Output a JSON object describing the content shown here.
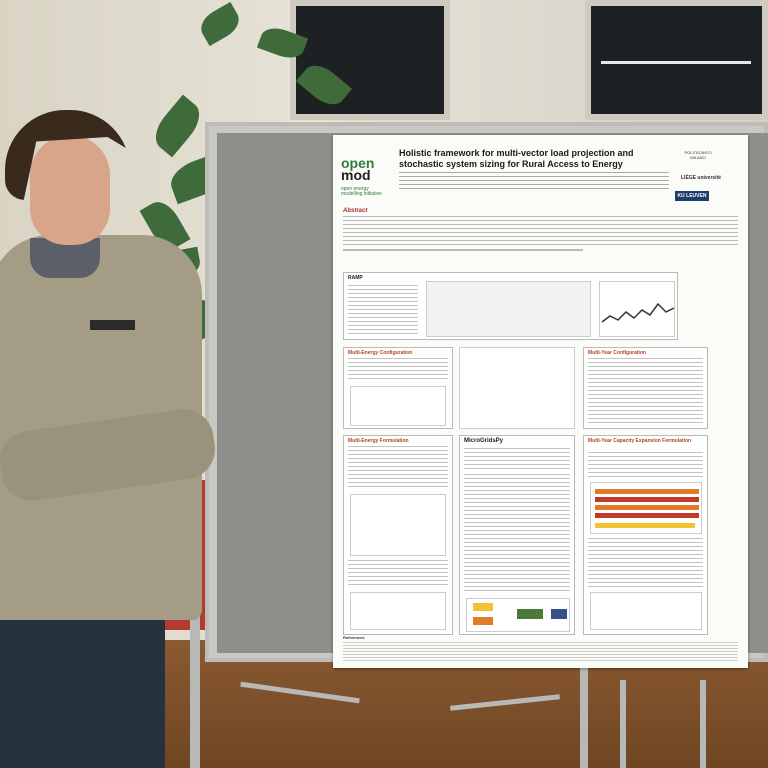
{
  "poster": {
    "logo": {
      "word1": "open",
      "word2": "mod",
      "subtitle": "open energy modelling initiative"
    },
    "title": "Holistic framework for multi-vector load projection and stochastic system sizing for Rural Access to Energy",
    "institutions": {
      "polimi": "POLITECNICO MILANO",
      "liege": "LIÈGE université",
      "kul": "KU LEUVEN"
    },
    "abstract_heading": "Abstract",
    "sections": {
      "ramp": "RAMP",
      "multi_energy_config": "Multi-Energy Configuration",
      "multi_year_config": "Multi-Year Configuration",
      "multi_energy_formulation": "Multi-Energy Formulation",
      "microgridspy": "MicroGridsPy",
      "multi_year_formulation": "Multi-Year Capacity Expansion Formulation"
    },
    "references_heading": "References"
  },
  "colors": {
    "accent": "#2f7d3d",
    "section_red": "#b2441c",
    "kul_blue": "#1c3c6b"
  }
}
